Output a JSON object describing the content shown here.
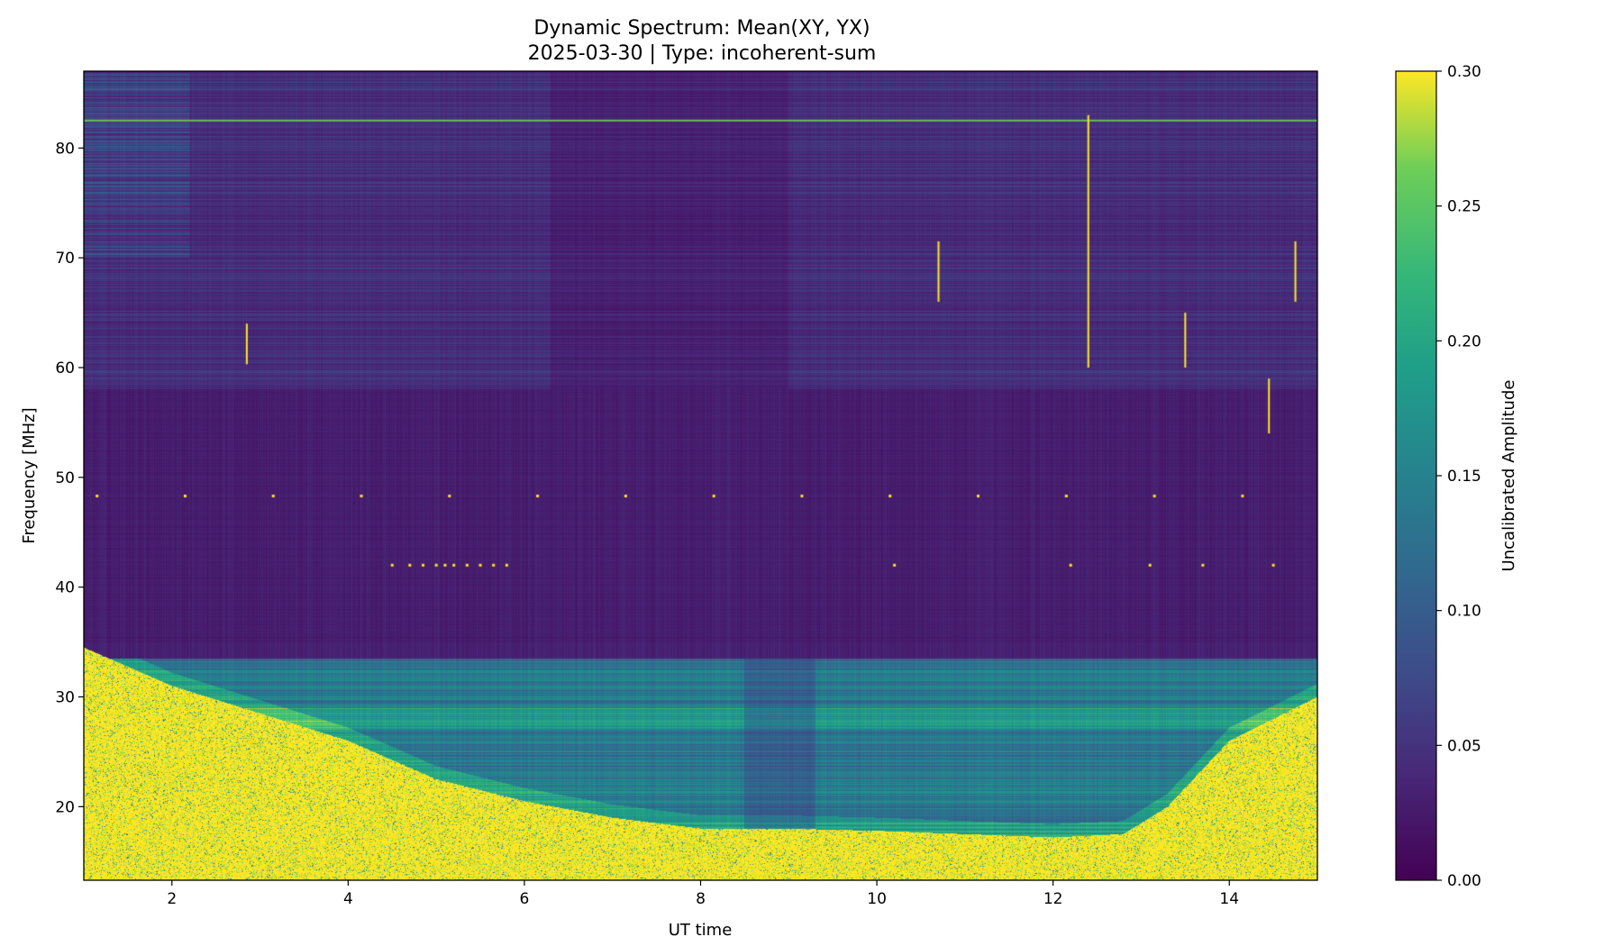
{
  "chart_data": {
    "type": "heatmap",
    "title": "Dynamic Spectrum: Mean(XY, YX)",
    "subtitle": "2025-03-30 | Type: incoherent-sum",
    "xlabel": "UT time",
    "ylabel": "Frequency [MHz]",
    "colorbar_label": "Uncalibrated Amplitude",
    "colormap": "viridis",
    "xlim": [
      1.0,
      15.0
    ],
    "ylim": [
      13.3,
      87.0
    ],
    "clim": [
      0.0,
      0.3
    ],
    "x_ticks": [
      2,
      4,
      6,
      8,
      10,
      12,
      14
    ],
    "y_ticks": [
      20,
      30,
      40,
      50,
      60,
      70,
      80
    ],
    "colorbar_ticks": [
      "0.00",
      "0.05",
      "0.10",
      "0.15",
      "0.20",
      "0.25",
      "0.30"
    ],
    "grid": false,
    "features": {
      "saturated_low_band_boundary": [
        {
          "t": 1.0,
          "f": 34.5
        },
        {
          "t": 2.0,
          "f": 31.0
        },
        {
          "t": 3.0,
          "f": 28.5
        },
        {
          "t": 4.0,
          "f": 26.0
        },
        {
          "t": 5.0,
          "f": 22.5
        },
        {
          "t": 6.0,
          "f": 20.5
        },
        {
          "t": 7.0,
          "f": 19.0
        },
        {
          "t": 8.0,
          "f": 18.0
        },
        {
          "t": 9.0,
          "f": 18.0
        },
        {
          "t": 10.0,
          "f": 17.8
        },
        {
          "t": 11.0,
          "f": 17.5
        },
        {
          "t": 12.0,
          "f": 17.2
        },
        {
          "t": 12.8,
          "f": 17.5
        },
        {
          "t": 13.3,
          "f": 20.0
        },
        {
          "t": 14.0,
          "f": 26.0
        },
        {
          "t": 15.0,
          "f": 30.0
        }
      ],
      "elevated_band": {
        "f_low": 17.0,
        "f_high": 33.5
      },
      "rfi_line_mhz": 82.5,
      "bright_vertical_bursts": [
        {
          "t": 2.85,
          "f_low": 60.3,
          "f_high": 64.0
        },
        {
          "t": 10.7,
          "f_low": 66.0,
          "f_high": 71.5
        },
        {
          "t": 12.4,
          "f_low": 60.0,
          "f_high": 83.0
        },
        {
          "t": 13.5,
          "f_low": 60.0,
          "f_high": 65.0
        },
        {
          "t": 14.45,
          "f_low": 54.0,
          "f_high": 59.0
        },
        {
          "t": 14.75,
          "f_low": 66.0,
          "f_high": 71.5
        }
      ],
      "periodic_dots_48mhz_t": [
        1.15,
        2.15,
        3.15,
        4.15,
        5.15,
        6.15,
        7.15,
        8.15,
        9.15,
        10.15,
        11.15,
        12.15,
        13.15,
        14.15
      ],
      "dots_42mhz_t": [
        4.5,
        4.7,
        4.85,
        5.0,
        5.1,
        5.2,
        5.35,
        5.5,
        5.65,
        5.8,
        10.2,
        12.2,
        13.1,
        13.7,
        14.5
      ]
    }
  }
}
